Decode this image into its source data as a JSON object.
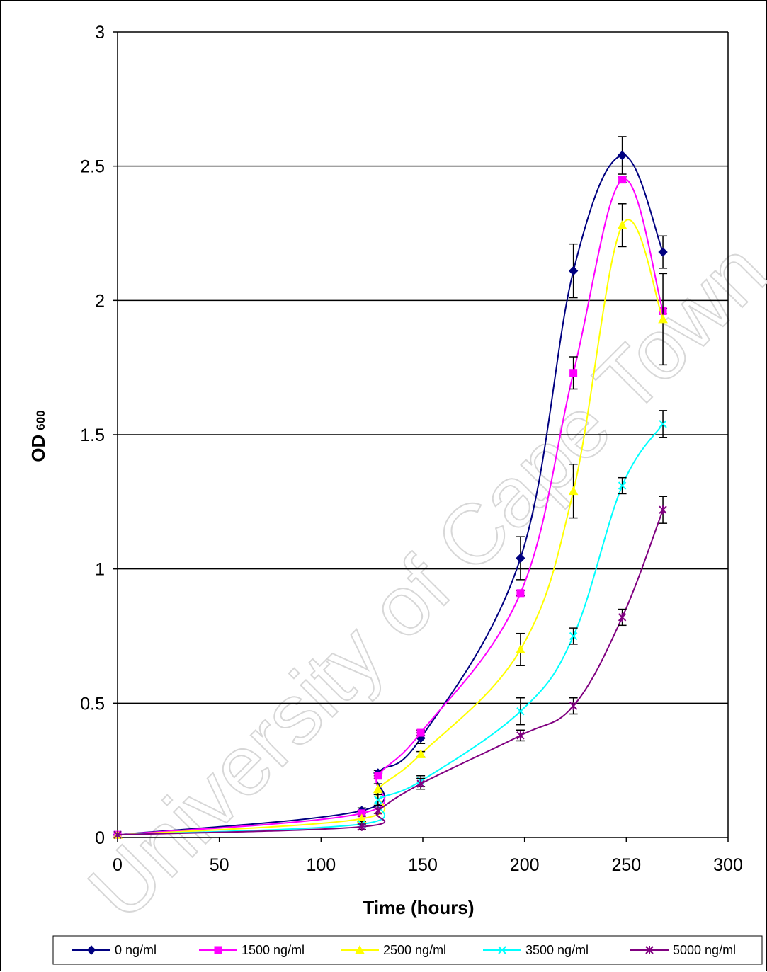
{
  "watermark": "University of Cape Town",
  "chart_data": {
    "type": "line",
    "title": "",
    "xlabel": "Time (hours)",
    "ylabel": "OD",
    "ylabel_sub": "600",
    "xlim": [
      0,
      300
    ],
    "ylim": [
      0,
      3
    ],
    "xticks": [
      0,
      50,
      100,
      150,
      200,
      250,
      300
    ],
    "yticks": [
      0,
      0.5,
      1,
      1.5,
      2,
      2.5,
      3
    ],
    "ytick_labels": [
      "0",
      "0.5",
      "1",
      "1.5",
      "2",
      "2.5",
      "3"
    ],
    "grid": "horizontal",
    "legend_position": "bottom",
    "series": [
      {
        "name": "0 ng/ml",
        "color": "#000080",
        "marker": "diamond",
        "x": [
          0,
          120,
          128,
          149,
          198,
          224,
          248,
          268
        ],
        "y": [
          0.01,
          0.1,
          0.24,
          0.37,
          1.04,
          2.11,
          2.54,
          2.18
        ],
        "err": [
          0,
          0.01,
          0.01,
          0.02,
          0.08,
          0.1,
          0.07,
          0.06
        ]
      },
      {
        "name": "1500 ng/ml",
        "color": "#ff00ff",
        "marker": "square",
        "x": [
          0,
          120,
          128,
          149,
          198,
          224,
          248,
          268
        ],
        "y": [
          0.01,
          0.09,
          0.23,
          0.39,
          0.91,
          1.73,
          2.45,
          1.96
        ],
        "err": [
          0,
          0.01,
          0.01,
          0.01,
          0.01,
          0.06,
          0.01,
          0.01
        ]
      },
      {
        "name": "2500 ng/ml",
        "color": "#ffff00",
        "marker": "triangle",
        "x": [
          0,
          120,
          128,
          149,
          198,
          224,
          248,
          268
        ],
        "y": [
          0.01,
          0.07,
          0.18,
          0.31,
          0.7,
          1.29,
          2.28,
          1.93
        ],
        "err": [
          0,
          0.01,
          0.02,
          0.01,
          0.06,
          0.1,
          0.08,
          0.17
        ]
      },
      {
        "name": "3500 ng/ml",
        "color": "#00ffff",
        "marker": "x",
        "x": [
          0,
          120,
          128,
          149,
          198,
          224,
          248,
          268
        ],
        "y": [
          0.01,
          0.05,
          0.14,
          0.21,
          0.47,
          0.75,
          1.31,
          1.54
        ],
        "err": [
          0,
          0.01,
          0.02,
          0.02,
          0.05,
          0.03,
          0.03,
          0.05
        ]
      },
      {
        "name": "5000 ng/ml",
        "color": "#800080",
        "marker": "star",
        "x": [
          0,
          120,
          128,
          149,
          198,
          224,
          248,
          268
        ],
        "y": [
          0.01,
          0.04,
          0.1,
          0.2,
          0.38,
          0.49,
          0.82,
          1.22
        ],
        "err": [
          0,
          0.01,
          0.01,
          0.02,
          0.02,
          0.03,
          0.03,
          0.05
        ]
      }
    ]
  }
}
